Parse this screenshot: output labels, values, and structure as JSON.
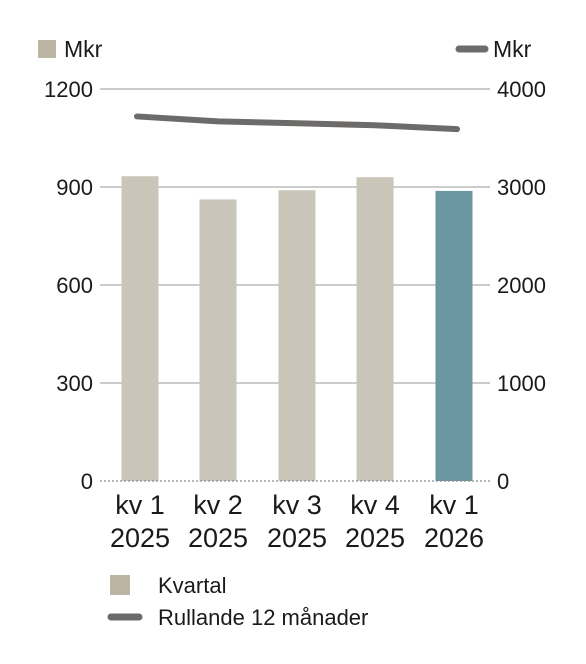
{
  "chart_data": {
    "type": "bar",
    "categories": [
      [
        "kv 1",
        "2025"
      ],
      [
        "kv 2",
        "2025"
      ],
      [
        "kv 3",
        "2025"
      ],
      [
        "kv 4",
        "2025"
      ],
      [
        "kv 1",
        "2026"
      ]
    ],
    "left_axis": {
      "unit": "Mkr",
      "ylim": [
        0,
        1200
      ],
      "ticks": [
        "0",
        "300",
        "600",
        "900",
        "1200"
      ]
    },
    "right_axis": {
      "unit": "Mkr",
      "ylim": [
        0,
        4000
      ],
      "ticks": [
        "0",
        "1000",
        "2000",
        "3000",
        "4000"
      ]
    },
    "series": [
      {
        "name": "Kvartal",
        "type": "bar",
        "axis": "left",
        "values": [
          933,
          862,
          890,
          930,
          888
        ]
      },
      {
        "name": "Rullande 12 månader",
        "type": "line",
        "axis": "right",
        "values": [
          3720,
          3670,
          3650,
          3630,
          3590
        ]
      }
    ],
    "grid": true,
    "legend_position": "bottom-left"
  },
  "colors": {
    "bar": "#c9c5b8",
    "bar_highlight": "#6b95a1",
    "line": "#6d6b69",
    "grid": "#9a9a9a",
    "text": "#1a1a1a"
  }
}
